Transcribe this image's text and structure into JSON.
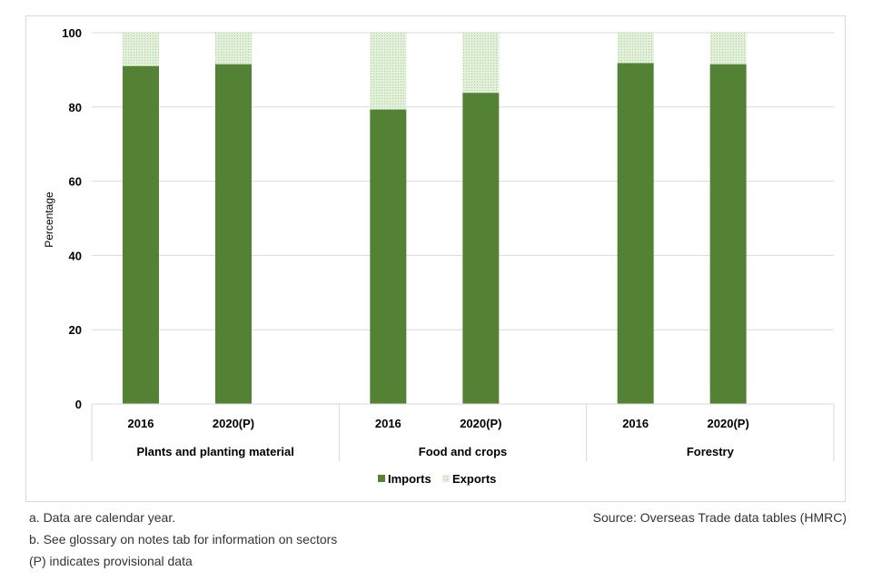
{
  "chart_data": {
    "type": "bar",
    "stacked": true,
    "title": "",
    "xlabel": "",
    "ylabel": "Percentage",
    "ylim": [
      0,
      100
    ],
    "yticks": [
      0,
      20,
      40,
      60,
      80,
      100
    ],
    "grid": true,
    "legend_position": "bottom",
    "groups": [
      {
        "name": "Plants and planting material",
        "categories": [
          "2016",
          "2020(P)"
        ]
      },
      {
        "name": "Food and crops",
        "categories": [
          "2016",
          "2020(P)"
        ]
      },
      {
        "name": "Forestry",
        "categories": [
          "2016",
          "2020(P)"
        ]
      }
    ],
    "series": [
      {
        "name": "Imports",
        "color": "#548235",
        "values": [
          91,
          91.5,
          79.3,
          83.8,
          91.8,
          91.5
        ]
      },
      {
        "name": "Exports",
        "color": "#c5e0b3",
        "values": [
          9,
          8.5,
          20.7,
          16.2,
          8.2,
          8.5
        ]
      }
    ]
  },
  "notes": {
    "note_a": "a. Data are calendar year.",
    "note_b": "b. See glossary on notes tab for information on sectors",
    "note_p": "(P) indicates provisional data",
    "source": "Source: Overseas Trade data tables (HMRC)"
  }
}
